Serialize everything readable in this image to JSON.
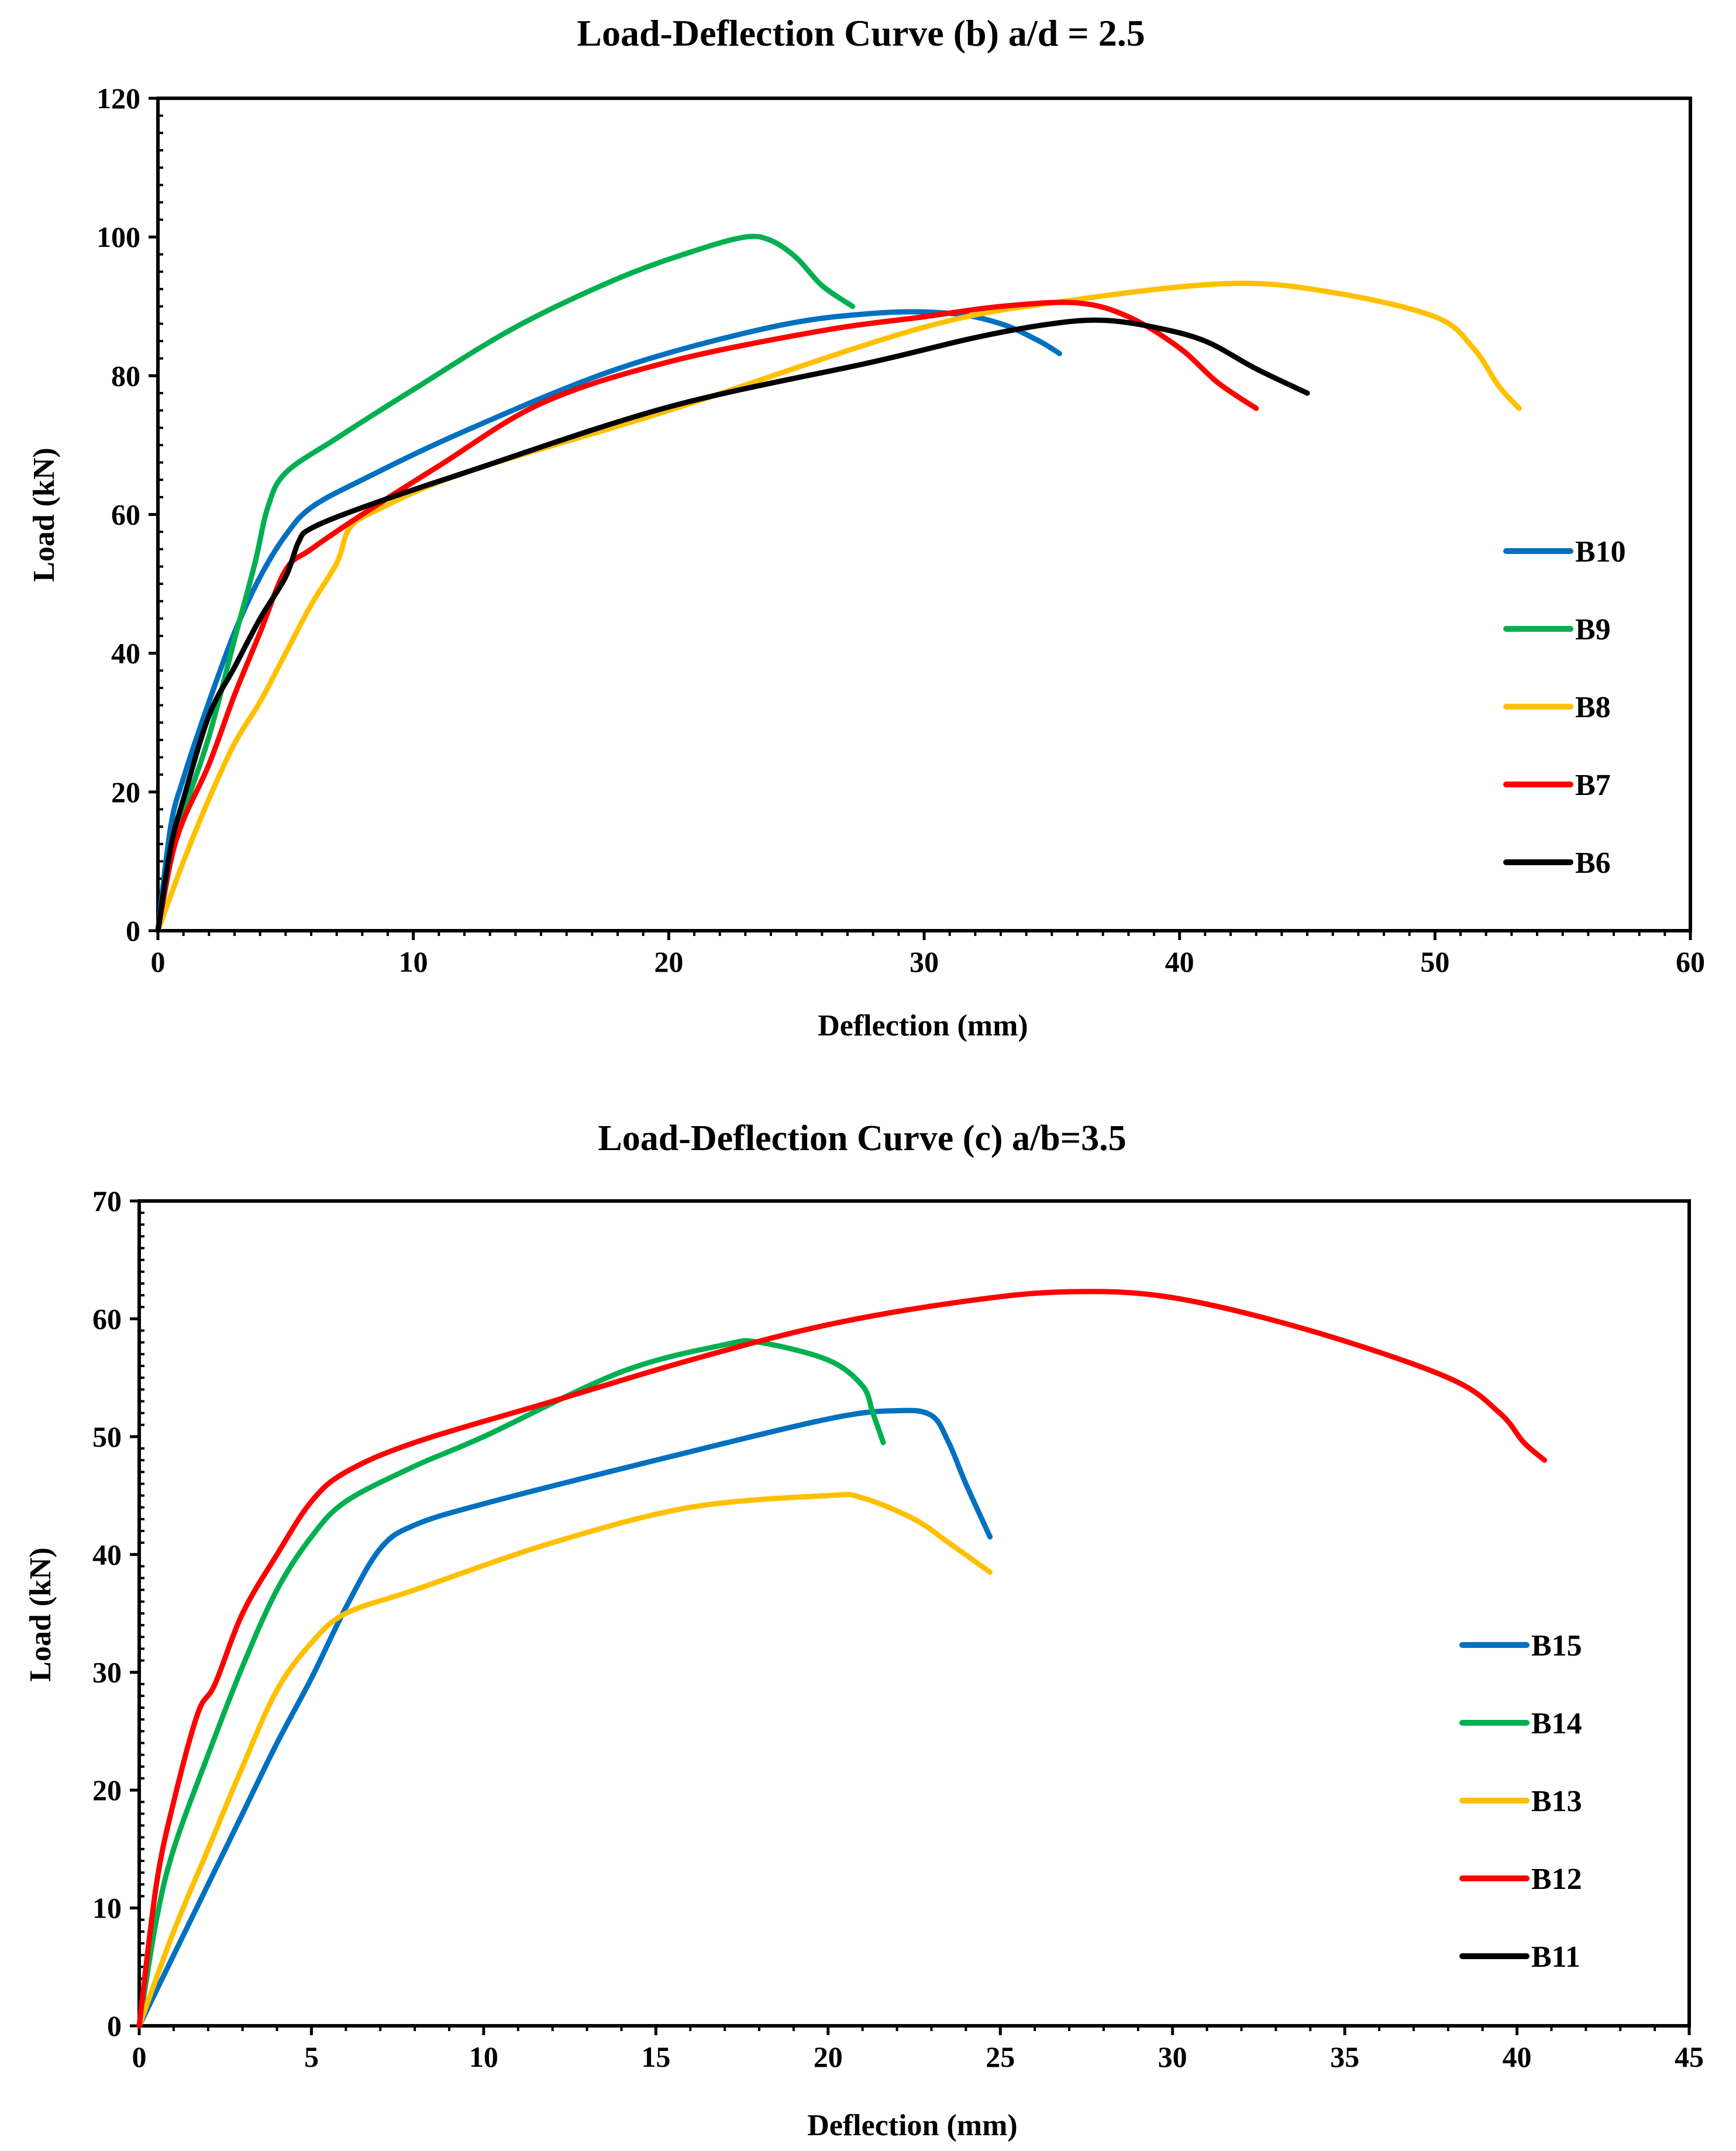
{
  "chart_data": [
    {
      "type": "line",
      "title": "Load-Deflection Curve (b) a/d = 2.5",
      "xlabel": "Deflection (mm)",
      "ylabel": "Load (kN)",
      "xlim": [
        0,
        60
      ],
      "ylim": [
        0,
        120
      ],
      "xticks": [
        "0",
        "10",
        "20",
        "30",
        "40",
        "50",
        "60"
      ],
      "yticks": [
        "0",
        "20",
        "40",
        "60",
        "80",
        "100",
        "120"
      ],
      "grid": false,
      "legend_position": "right",
      "series": [
        {
          "name": "B10",
          "color": "#0070C0",
          "points": [
            [
              0,
              0
            ],
            [
              0.5,
              15
            ],
            [
              1,
              22
            ],
            [
              2,
              33
            ],
            [
              3,
              43
            ],
            [
              4,
              51
            ],
            [
              5,
              57
            ],
            [
              6,
              61
            ],
            [
              8,
              65
            ],
            [
              12,
              72
            ],
            [
              18,
              81
            ],
            [
              24,
              87
            ],
            [
              28,
              89
            ],
            [
              31,
              89
            ],
            [
              33,
              87.5
            ],
            [
              34.5,
              85
            ],
            [
              35.3,
              83.2
            ]
          ]
        },
        {
          "name": "B9",
          "color": "#00B050",
          "points": [
            [
              0,
              0
            ],
            [
              0.5,
              10
            ],
            [
              1,
              17
            ],
            [
              2,
              28
            ],
            [
              3,
              42
            ],
            [
              3.8,
              53
            ],
            [
              4.3,
              61
            ],
            [
              5,
              66
            ],
            [
              7,
              71
            ],
            [
              10,
              78
            ],
            [
              14,
              87
            ],
            [
              18,
              94
            ],
            [
              21,
              98
            ],
            [
              23,
              100
            ],
            [
              24,
              99.5
            ],
            [
              25,
              97
            ],
            [
              26,
              93
            ],
            [
              27.2,
              90
            ]
          ]
        },
        {
          "name": "B8",
          "color": "#FFC000",
          "points": [
            [
              0,
              0
            ],
            [
              1,
              10
            ],
            [
              2,
              19
            ],
            [
              3,
              27
            ],
            [
              4,
              33
            ],
            [
              5,
              40
            ],
            [
              6,
              47
            ],
            [
              7,
              53
            ],
            [
              7.5,
              58
            ],
            [
              8.5,
              60.5
            ],
            [
              12,
              66
            ],
            [
              20,
              75
            ],
            [
              30,
              87
            ],
            [
              36,
              91
            ],
            [
              42,
              93.3
            ],
            [
              46,
              92
            ],
            [
              50,
              88.5
            ],
            [
              51.5,
              84
            ],
            [
              52.5,
              78.5
            ],
            [
              53.3,
              75.3
            ]
          ]
        },
        {
          "name": "B7",
          "color": "#FF0000",
          "points": [
            [
              0,
              0
            ],
            [
              0.5,
              10
            ],
            [
              1,
              16
            ],
            [
              2,
              24
            ],
            [
              3,
              34
            ],
            [
              4,
              43
            ],
            [
              5,
              52
            ],
            [
              6,
              55
            ],
            [
              8,
              60
            ],
            [
              11,
              67
            ],
            [
              15,
              76
            ],
            [
              20,
              82
            ],
            [
              26,
              86.5
            ],
            [
              30,
              88.5
            ],
            [
              33,
              90
            ],
            [
              36,
              90.5
            ],
            [
              38,
              88.5
            ],
            [
              40,
              84
            ],
            [
              41.5,
              79
            ],
            [
              43,
              75.3
            ]
          ]
        },
        {
          "name": "B6",
          "color": "#000000",
          "points": [
            [
              0,
              0
            ],
            [
              0.5,
              12
            ],
            [
              1,
              19
            ],
            [
              2,
              31
            ],
            [
              3,
              38
            ],
            [
              4,
              45
            ],
            [
              5,
              51
            ],
            [
              5.5,
              56
            ],
            [
              6,
              58
            ],
            [
              8,
              61
            ],
            [
              12,
              66
            ],
            [
              20,
              75.5
            ],
            [
              28,
              82
            ],
            [
              32,
              85.5
            ],
            [
              35,
              87.5
            ],
            [
              37,
              88
            ],
            [
              39,
              87
            ],
            [
              41,
              85
            ],
            [
              43,
              81
            ],
            [
              45,
              77.5
            ]
          ]
        }
      ]
    },
    {
      "type": "line",
      "title": "Load-Deflection Curve (c) a/b=3.5",
      "xlabel": "Deflection (mm)",
      "ylabel": "Load (kN)",
      "xlim": [
        0,
        45
      ],
      "ylim": [
        0,
        70
      ],
      "xticks": [
        "0",
        "5",
        "10",
        "15",
        "20",
        "25",
        "30",
        "35",
        "40",
        "45"
      ],
      "yticks": [
        "0",
        "10",
        "20",
        "30",
        "40",
        "50",
        "60",
        "70"
      ],
      "grid": false,
      "legend_position": "right",
      "series": [
        {
          "name": "B15",
          "color": "#0070C0",
          "points": [
            [
              0,
              0
            ],
            [
              1,
              6
            ],
            [
              2,
              12
            ],
            [
              3,
              18
            ],
            [
              4,
              24
            ],
            [
              5,
              29.5
            ],
            [
              6,
              35.5
            ],
            [
              7,
              40.5
            ],
            [
              8,
              42.5
            ],
            [
              10,
              44.3
            ],
            [
              15,
              48
            ],
            [
              20,
              51.5
            ],
            [
              22,
              52.2
            ],
            [
              23,
              51.8
            ],
            [
              23.5,
              49.5
            ],
            [
              24,
              46
            ],
            [
              24.7,
              41.5
            ]
          ]
        },
        {
          "name": "B14",
          "color": "#00B050",
          "points": [
            [
              0,
              0
            ],
            [
              0.5,
              9
            ],
            [
              1,
              15
            ],
            [
              2,
              23
            ],
            [
              3,
              30.5
            ],
            [
              4,
              37
            ],
            [
              5,
              41.5
            ],
            [
              6,
              44.5
            ],
            [
              8,
              47.5
            ],
            [
              10,
              50
            ],
            [
              14,
              55.5
            ],
            [
              17,
              57.8
            ],
            [
              18,
              58
            ],
            [
              20,
              56.5
            ],
            [
              21,
              54.3
            ],
            [
              21.3,
              52
            ],
            [
              21.6,
              49.5
            ]
          ]
        },
        {
          "name": "B13",
          "color": "#FFC000",
          "points": [
            [
              0,
              0
            ],
            [
              1,
              8
            ],
            [
              2,
              15
            ],
            [
              3,
              22
            ],
            [
              4,
              28.5
            ],
            [
              5,
              32.5
            ],
            [
              6,
              35
            ],
            [
              8,
              37
            ],
            [
              12,
              41
            ],
            [
              16,
              44
            ],
            [
              20,
              45
            ],
            [
              21,
              44.8
            ],
            [
              22.5,
              43
            ],
            [
              23.5,
              41
            ],
            [
              24.7,
              38.5
            ]
          ]
        },
        {
          "name": "B12",
          "color": "#FF0000",
          "points": [
            [
              0,
              0
            ],
            [
              0.5,
              12
            ],
            [
              1,
              19
            ],
            [
              1.7,
              26.5
            ],
            [
              2.2,
              29
            ],
            [
              3,
              35
            ],
            [
              4,
              40
            ],
            [
              5,
              44.5
            ],
            [
              6,
              47
            ],
            [
              8,
              49.5
            ],
            [
              12,
              53
            ],
            [
              16,
              56.5
            ],
            [
              20,
              59.5
            ],
            [
              24,
              61.5
            ],
            [
              27,
              62.3
            ],
            [
              30,
              61.8
            ],
            [
              34,
              59
            ],
            [
              38,
              55
            ],
            [
              39.5,
              52
            ],
            [
              40.2,
              49.5
            ],
            [
              40.8,
              48
            ]
          ]
        },
        {
          "name": "B11",
          "color": "#000000",
          "points": []
        }
      ]
    }
  ]
}
